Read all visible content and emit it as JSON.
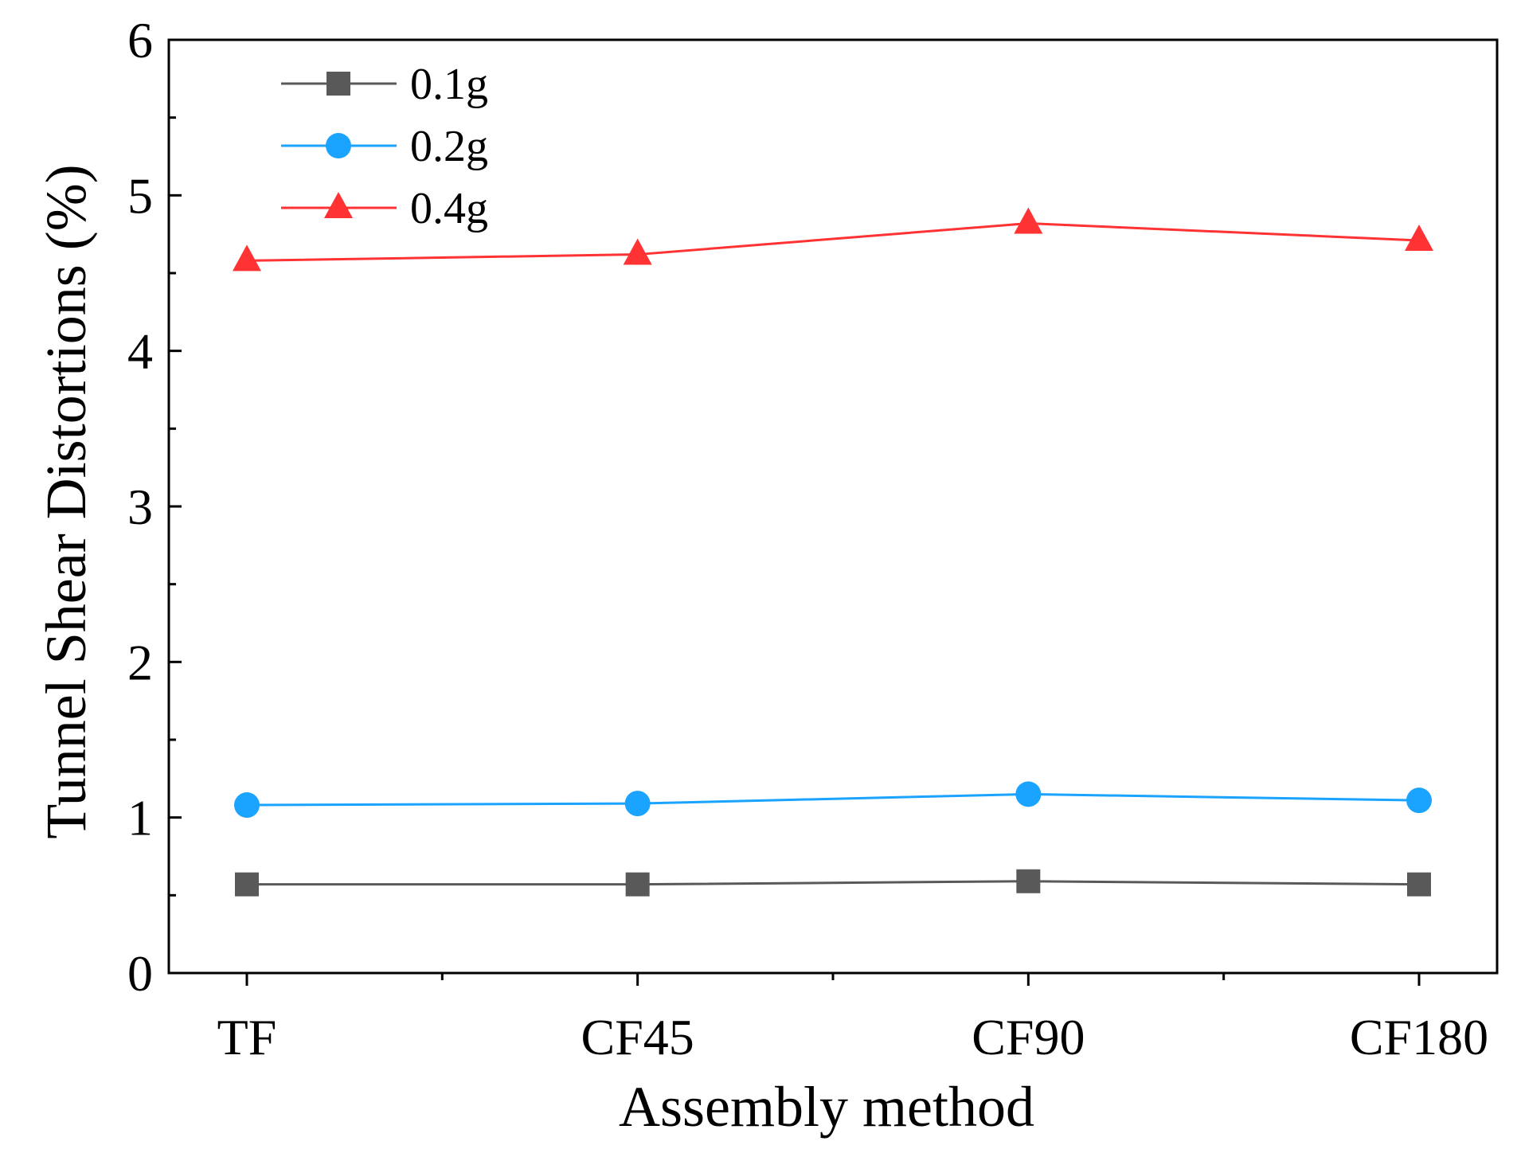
{
  "chart_data": {
    "type": "line",
    "title": "",
    "xlabel": "Assembly method",
    "ylabel": "Tunnel Shear Distortions (%)",
    "categories": [
      "TF",
      "CF45",
      "CF90",
      "CF180"
    ],
    "ylim": [
      0,
      6
    ],
    "yticks": [
      "0",
      "1",
      "2",
      "3",
      "4",
      "5",
      "6"
    ],
    "grid": false,
    "legend_position": "top-left",
    "series": [
      {
        "name": "0.1g",
        "values": [
          0.57,
          0.57,
          0.59,
          0.57
        ],
        "color": "#595959",
        "marker": "square"
      },
      {
        "name": "0.2g",
        "values": [
          1.08,
          1.09,
          1.15,
          1.11
        ],
        "color": "#1aa3ff",
        "marker": "circle"
      },
      {
        "name": "0.4g",
        "values": [
          4.58,
          4.62,
          4.82,
          4.71
        ],
        "color": "#ff3333",
        "marker": "triangle"
      }
    ]
  }
}
